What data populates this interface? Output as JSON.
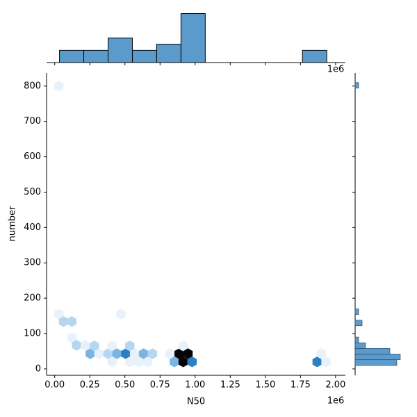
{
  "chart_data": {
    "type": "hexbin-joint",
    "x_label": "N50",
    "y_label": "number",
    "x_offset_label": "1e6",
    "xlim": [
      -58000,
      2070000
    ],
    "ylim": [
      -18,
      837
    ],
    "xticks": [
      {
        "value": 0,
        "label": "0.00"
      },
      {
        "value": 250000,
        "label": "0.25"
      },
      {
        "value": 500000,
        "label": "0.50"
      },
      {
        "value": 750000,
        "label": "0.75"
      },
      {
        "value": 1000000,
        "label": "1.00"
      },
      {
        "value": 1250000,
        "label": "1.25"
      },
      {
        "value": 1500000,
        "label": "1.50"
      },
      {
        "value": 1750000,
        "label": "1.75"
      },
      {
        "value": 2000000,
        "label": "2.00"
      }
    ],
    "yticks": [
      0,
      100,
      200,
      300,
      400,
      500,
      600,
      700,
      800
    ],
    "colormap": [
      "#e8f1fa",
      "#b4d6f0",
      "#7ab4e2",
      "#2b7fc4",
      "#0d2740",
      "#050505"
    ],
    "hexbins": {
      "x": [
        29000,
        29000,
        63000,
        122000,
        122000,
        156000,
        219000,
        253000,
        282000,
        316000,
        380000,
        409000,
        409000,
        443000,
        472000,
        506000,
        535000,
        535000,
        569000,
        599000,
        633000,
        662000,
        696000,
        822000,
        852000,
        886000,
        915000,
        915000,
        949000,
        978000,
        1869000,
        1898000,
        1932000
      ],
      "y": [
        800,
        155,
        134,
        134,
        88,
        67,
        67,
        43,
        65,
        43,
        43,
        65,
        20,
        43,
        155,
        43,
        65,
        20,
        43,
        20,
        43,
        20,
        43,
        43,
        20,
        43,
        65,
        20,
        43,
        20,
        20,
        43,
        20
      ],
      "counts": [
        1,
        1,
        2,
        2,
        1,
        2,
        1,
        3,
        2,
        1,
        2,
        1,
        1,
        3,
        1,
        4,
        2,
        1,
        1,
        1,
        3,
        1,
        2,
        1,
        3,
        6,
        1,
        6,
        6,
        4,
        4,
        1,
        1
      ]
    },
    "hist_color": "#5a9bcb",
    "x_hist": {
      "bins": [
        34000,
        207000,
        380000,
        553000,
        726000,
        899000,
        1072000,
        1245000,
        1418000,
        1591000,
        1764000,
        1937000
      ],
      "counts": [
        2,
        2,
        4,
        2,
        3,
        8,
        0,
        0,
        0,
        0,
        2
      ],
      "ylim": [
        0,
        8.4
      ]
    },
    "y_hist": {
      "bins": [
        10,
        26,
        42,
        58,
        74,
        90,
        106,
        122,
        138,
        154,
        170,
        186,
        202,
        218,
        234,
        250,
        266,
        282,
        298,
        314,
        330,
        346,
        362,
        378,
        394,
        410,
        426,
        442,
        458,
        474,
        490,
        506,
        522,
        538,
        554,
        570,
        586,
        602,
        618,
        634,
        650,
        666,
        682,
        698,
        714,
        730,
        746,
        762,
        778,
        794,
        810
      ],
      "counts": [
        12,
        13,
        10,
        3,
        1,
        0,
        0,
        2,
        0,
        1,
        0,
        0,
        0,
        0,
        0,
        0,
        0,
        0,
        0,
        0,
        0,
        0,
        0,
        0,
        0,
        0,
        0,
        0,
        0,
        0,
        0,
        0,
        0,
        0,
        0,
        0,
        0,
        0,
        0,
        0,
        0,
        0,
        0,
        0,
        0,
        0,
        0,
        0,
        0,
        1
      ],
      "xlim": [
        0,
        14
      ]
    }
  }
}
